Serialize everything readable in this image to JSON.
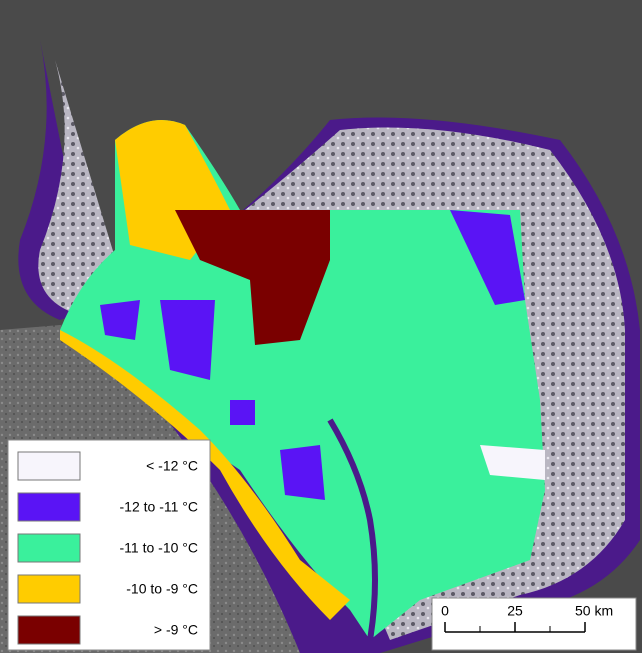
{
  "legend": {
    "items": [
      {
        "label": "< -12 °C",
        "color": "#f7f5fc"
      },
      {
        "label": "-12 to -11 °C",
        "color": "#5a14f5"
      },
      {
        "label": "-11 to -10 °C",
        "color": "#3af09c"
      },
      {
        "label": "-10 to  -9 °C",
        "color": "#ffcc00"
      },
      {
        "label": "> -9 °C",
        "color": "#7a0000"
      }
    ]
  },
  "scale_bar": {
    "ticks": [
      {
        "value": 0,
        "label": "0"
      },
      {
        "value": 25,
        "label": "25"
      },
      {
        "value": 50,
        "label": "50 km"
      }
    ]
  }
}
